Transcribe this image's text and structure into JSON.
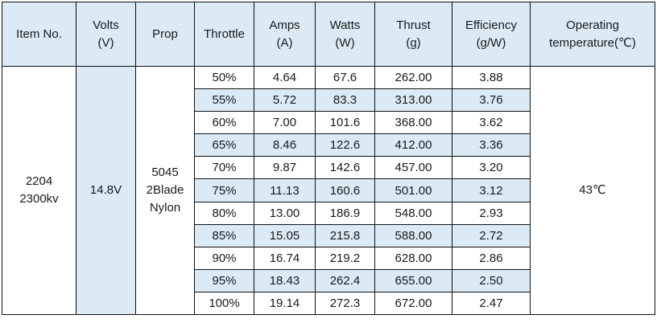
{
  "headers": {
    "item_no": "Item No.",
    "volts": [
      "Volts",
      "(V)"
    ],
    "prop": "Prop",
    "throttle": "Throttle",
    "amps": [
      "Amps",
      "(A)"
    ],
    "watts": [
      "Watts",
      "(W)"
    ],
    "thrust": [
      "Thrust",
      "(g)"
    ],
    "efficiency": [
      "Efficiency",
      "(g/W)"
    ],
    "temperature": [
      "Operating",
      "temperature(℃)"
    ]
  },
  "item_no": [
    "2204",
    "2300kv"
  ],
  "volts": "14.8V",
  "prop": [
    "5045",
    "2Blade",
    "Nylon"
  ],
  "operating_temperature": "43℃",
  "rows": [
    {
      "throttle": "50%",
      "amps": "4.64",
      "watts": "67.6",
      "thrust": "262.00",
      "efficiency": "3.88"
    },
    {
      "throttle": "55%",
      "amps": "5.72",
      "watts": "83.3",
      "thrust": "313.00",
      "efficiency": "3.76"
    },
    {
      "throttle": "60%",
      "amps": "7.00",
      "watts": "101.6",
      "thrust": "368.00",
      "efficiency": "3.62"
    },
    {
      "throttle": "65%",
      "amps": "8.46",
      "watts": "122.6",
      "thrust": "412.00",
      "efficiency": "3.36"
    },
    {
      "throttle": "70%",
      "amps": "9.87",
      "watts": "142.6",
      "thrust": "457.00",
      "efficiency": "3.20"
    },
    {
      "throttle": "75%",
      "amps": "11.13",
      "watts": "160.6",
      "thrust": "501.00",
      "efficiency": "3.12"
    },
    {
      "throttle": "80%",
      "amps": "13.00",
      "watts": "186.9",
      "thrust": "548.00",
      "efficiency": "2.93"
    },
    {
      "throttle": "85%",
      "amps": "15.05",
      "watts": "215.8",
      "thrust": "588.00",
      "efficiency": "2.72"
    },
    {
      "throttle": "90%",
      "amps": "16.74",
      "watts": "219.2",
      "thrust": "628.00",
      "efficiency": "2.86"
    },
    {
      "throttle": "95%",
      "amps": "18.43",
      "watts": "262.4",
      "thrust": "655.00",
      "efficiency": "2.50"
    },
    {
      "throttle": "100%",
      "amps": "19.14",
      "watts": "272.3",
      "thrust": "672.00",
      "efficiency": "2.47"
    }
  ],
  "colors": {
    "header_band": "#dbeaf5",
    "border": "#111111"
  }
}
